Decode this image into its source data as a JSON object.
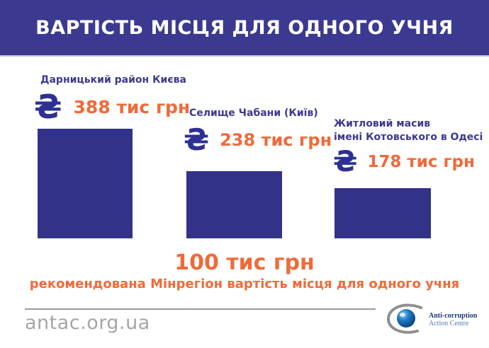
{
  "header": {
    "title": "ВАРТІСТЬ МІСЦЯ ДЛЯ ОДНОГО УЧНЯ"
  },
  "chart_data": {
    "type": "bar",
    "title": "ВАРТІСТЬ МІСЦЯ ДЛЯ ОДНОГО УЧНЯ",
    "unit": "тис грн",
    "categories": [
      "Дарницький район Києва",
      "Селище Чабани (Київ)",
      "Житловий масив імені Котовського в Одесі"
    ],
    "values": [
      388,
      238,
      178
    ],
    "value_labels": [
      "388 тис грн",
      "238 тис грн",
      "178 тис грн"
    ],
    "reference": {
      "value": 100,
      "label": "100 тис грн",
      "description": "рекомендована Мінрегіон вартість місця для одного учня"
    },
    "bar_color": "#333289",
    "value_label_color": "#f06a38",
    "category_label_color": "#3b3a90",
    "legend_position": "none",
    "grid": false
  },
  "bars": [
    {
      "label_line1": "Дарницький район Києва",
      "currency_icon": "₴",
      "value_label": "388 тис грн"
    },
    {
      "label_line1": "Селище Чабани (Київ)",
      "currency_icon": "₴",
      "value_label": "238 тис грн"
    },
    {
      "label_line1": "Житловий масив",
      "label_line2": "імені Котовського в Одесі",
      "currency_icon": "₴",
      "value_label": "178 тис грн"
    }
  ],
  "recommendation": {
    "value_text": "100 тис грн",
    "description": "рекомендована Мінрегіон вартість місця для одного учня"
  },
  "footer": {
    "website": "antac.org.ua",
    "logo_line1": "Anti-corruption",
    "logo_line2": "Action Centre"
  },
  "colors": {
    "banner": "#3b3a90",
    "bar": "#333289",
    "accent_orange": "#f06a38",
    "footer_gray": "#a6a6a6"
  }
}
